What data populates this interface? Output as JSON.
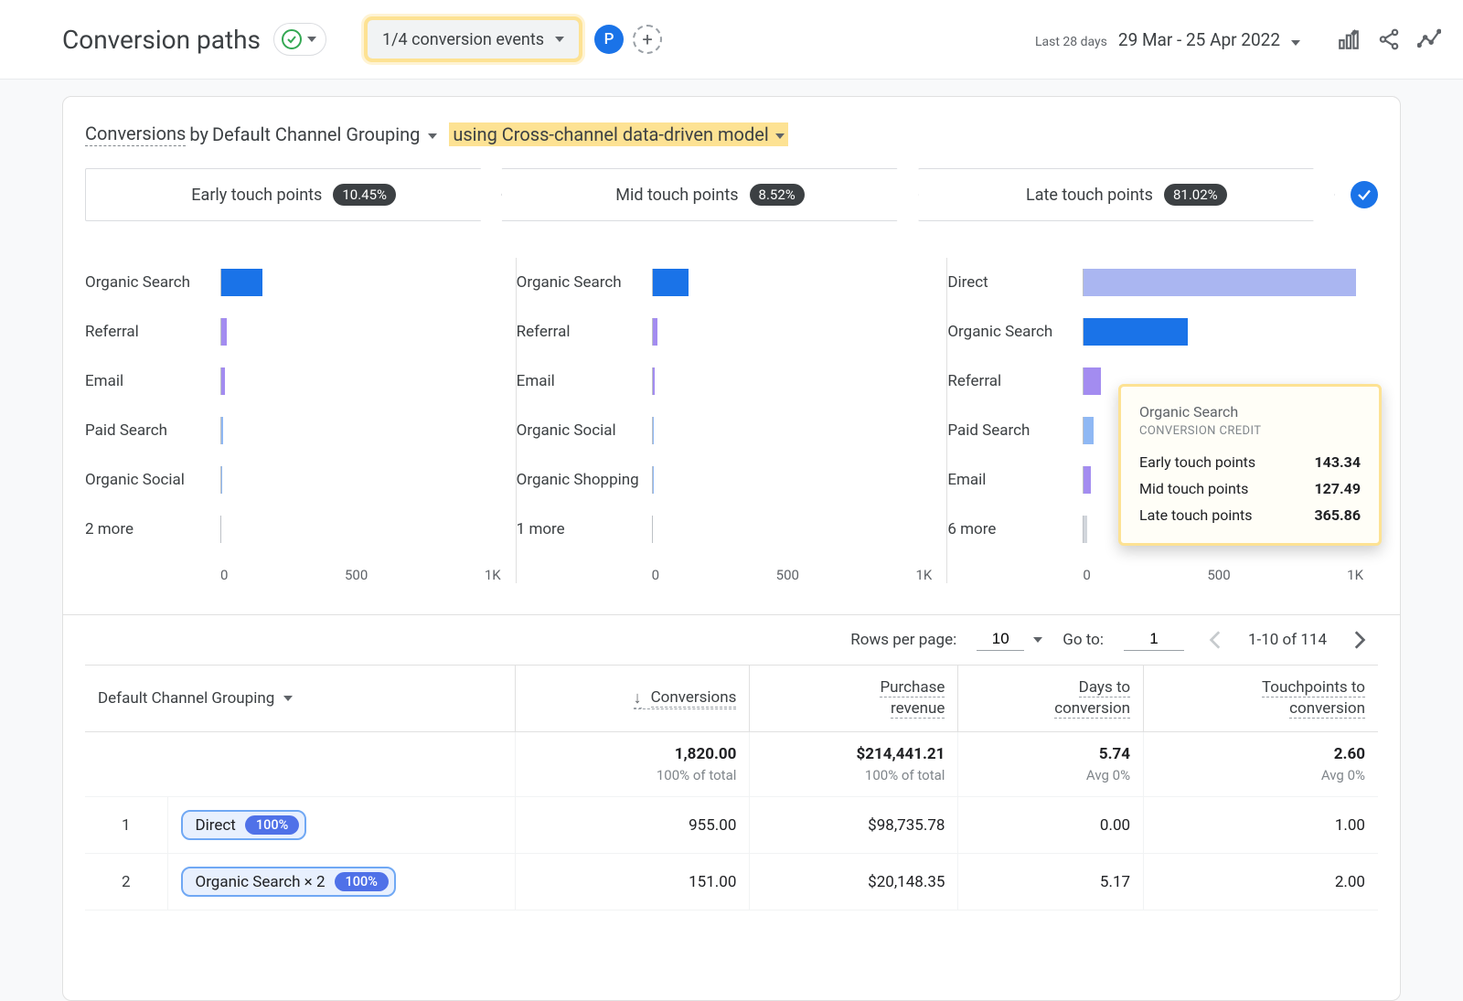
{
  "header": {
    "pageTitle": "Conversion paths",
    "eventsDropdown": "1/4 conversion events",
    "segmentBadge": "P",
    "dateRange": {
      "label": "Last 28 days",
      "value": "29 Mar - 25 Apr 2022"
    }
  },
  "subtitle": {
    "prefix": "Conversions",
    "by": " by ",
    "group": "Default Channel Grouping",
    "modelText": "using Cross-channel data-driven model"
  },
  "funnel": {
    "steps": [
      {
        "label": "Early touch points",
        "pct": "10.45%"
      },
      {
        "label": "Mid touch points",
        "pct": "8.52%"
      },
      {
        "label": "Late touch points",
        "pct": "81.02%"
      }
    ]
  },
  "chartStyle": {
    "colors": {
      "organic_search": "#1a73e8",
      "direct": "#aab6f1",
      "referral": "#a38cf0",
      "email": "#a38cf0",
      "paid_search": "#8fb8f4",
      "organic_social": "#8fb8f4",
      "organic_shopping": "#8fb8f4",
      "other": "#d2d6dc"
    },
    "xMax": 1000,
    "xTicks": [
      "0",
      "500",
      "1K"
    ]
  },
  "charts": [
    {
      "rows": [
        {
          "label": "Organic Search",
          "value": 143,
          "colorKey": "organic_search"
        },
        {
          "label": "Referral",
          "value": 20,
          "colorKey": "referral"
        },
        {
          "label": "Email",
          "value": 14,
          "colorKey": "email"
        },
        {
          "label": "Paid Search",
          "value": 6,
          "colorKey": "paid_search"
        },
        {
          "label": "Organic Social",
          "value": 3,
          "colorKey": "organic_social"
        },
        {
          "label": "2 more",
          "value": 0,
          "colorKey": "other"
        }
      ]
    },
    {
      "rows": [
        {
          "label": "Organic Search",
          "value": 127,
          "colorKey": "organic_search"
        },
        {
          "label": "Referral",
          "value": 16,
          "colorKey": "referral"
        },
        {
          "label": "Email",
          "value": 6,
          "colorKey": "email"
        },
        {
          "label": "Organic Social",
          "value": 4,
          "colorKey": "organic_social"
        },
        {
          "label": "Organic Shopping",
          "value": 3,
          "colorKey": "organic_shopping"
        },
        {
          "label": "1 more",
          "value": 0,
          "colorKey": "other"
        }
      ]
    },
    {
      "rows": [
        {
          "label": "Direct",
          "value": 955,
          "colorKey": "direct"
        },
        {
          "label": "Organic Search",
          "value": 366,
          "colorKey": "organic_search"
        },
        {
          "label": "Referral",
          "value": 60,
          "colorKey": "referral"
        },
        {
          "label": "Paid Search",
          "value": 35,
          "colorKey": "paid_search"
        },
        {
          "label": "Email",
          "value": 25,
          "colorKey": "email"
        },
        {
          "label": "6 more",
          "value": 12,
          "colorKey": "other"
        }
      ]
    }
  ],
  "tooltip": {
    "title": "Organic Search",
    "subtitle": "CONVERSION CREDIT",
    "rows": [
      {
        "label": "Early touch points",
        "value": "143.34"
      },
      {
        "label": "Mid touch points",
        "value": "127.49"
      },
      {
        "label": "Late touch points",
        "value": "365.86"
      }
    ]
  },
  "tableControls": {
    "rowsPerPageLabel": "Rows per page:",
    "rowsPerPageValue": "10",
    "goToLabel": "Go to:",
    "goToValue": "1",
    "rangeText": "1-10 of 114"
  },
  "table": {
    "firstHeader": "Default Channel Grouping",
    "columns": [
      {
        "name": "Conversions",
        "sorted": true
      },
      {
        "name1": "Purchase",
        "name2": "revenue"
      },
      {
        "name1": "Days to",
        "name2": "conversion"
      },
      {
        "name1": "Touchpoints to",
        "name2": "conversion"
      }
    ],
    "totals": {
      "cells": [
        {
          "v": "1,820.00",
          "sub": "100% of total"
        },
        {
          "v": "$214,441.21",
          "sub": "100% of total"
        },
        {
          "v": "5.74",
          "sub": "Avg 0%"
        },
        {
          "v": "2.60",
          "sub": "Avg 0%"
        }
      ]
    },
    "rows": [
      {
        "index": "1",
        "channelLabel": "Direct",
        "pill": "100%",
        "cells": [
          "955.00",
          "$98,735.78",
          "0.00",
          "1.00"
        ]
      },
      {
        "index": "2",
        "channelLabel": "Organic Search × 2",
        "pill": "100%",
        "cells": [
          "151.00",
          "$20,148.35",
          "5.17",
          "2.00"
        ]
      }
    ]
  }
}
